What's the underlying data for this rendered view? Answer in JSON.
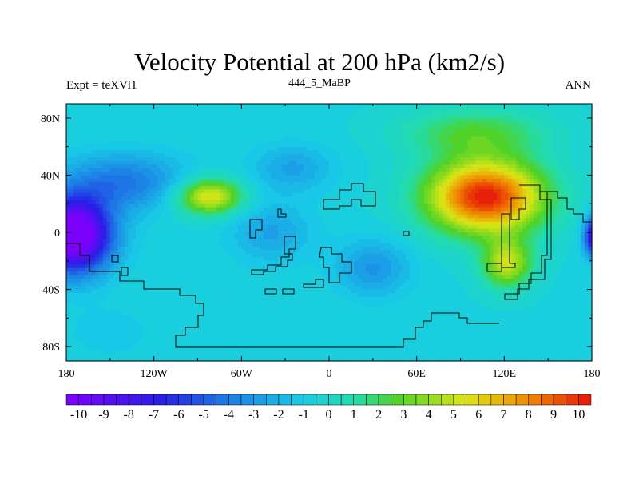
{
  "chart_data": {
    "type": "heatmap",
    "title": "Velocity Potential at 200 hPa (km2/s)",
    "left_string": "Expt = teXVl1",
    "center_string": "444_5_MaBP",
    "right_string": "ANN",
    "x_ticks": [
      {
        "value": -180,
        "label": "180"
      },
      {
        "value": -120,
        "label": "120W"
      },
      {
        "value": -60,
        "label": "60W"
      },
      {
        "value": 0,
        "label": "0"
      },
      {
        "value": 60,
        "label": "60E"
      },
      {
        "value": 120,
        "label": "120E"
      },
      {
        "value": 180,
        "label": "180"
      }
    ],
    "y_ticks": [
      {
        "value": 80,
        "label": "80N"
      },
      {
        "value": 40,
        "label": "40N"
      },
      {
        "value": 0,
        "label": "0"
      },
      {
        "value": -40,
        "label": "40S"
      },
      {
        "value": -80,
        "label": "80S"
      }
    ],
    "xlim": [
      -180,
      180
    ],
    "ylim": [
      -90,
      90
    ],
    "colorbar": {
      "min": -10.5,
      "max": 10.5,
      "step": 0.5,
      "labels": [
        "-10",
        "-9",
        "-8",
        "-7",
        "-6",
        "-5",
        "-4",
        "-3",
        "-2",
        "-1",
        "0",
        "1",
        "2",
        "3",
        "4",
        "5",
        "6",
        "7",
        "8",
        "9",
        "10"
      ]
    },
    "features": [
      {
        "lon": 107,
        "lat": 25,
        "amp": 11.0,
        "slon": 28,
        "slat": 18
      },
      {
        "lon": 122,
        "lat": -22,
        "amp": 5.5,
        "slon": 12,
        "slat": 12
      },
      {
        "lon": 100,
        "lat": 70,
        "amp": 3.0,
        "slon": 35,
        "slat": 12
      },
      {
        "lon": -82,
        "lat": 25,
        "amp": 6.5,
        "slon": 16,
        "slat": 9
      },
      {
        "lon": -175,
        "lat": -2,
        "amp": -12.0,
        "slon": 18,
        "slat": 18
      },
      {
        "lon": 184,
        "lat": -3,
        "amp": -10.0,
        "slon": 6,
        "slat": 10
      },
      {
        "lon": -140,
        "lat": 35,
        "amp": -3.5,
        "slon": 30,
        "slat": 14
      },
      {
        "lon": 30,
        "lat": -25,
        "amp": -2.5,
        "slon": 18,
        "slat": 14
      },
      {
        "lon": -40,
        "lat": 0,
        "amp": -2.0,
        "slon": 20,
        "slat": 15
      },
      {
        "lon": -25,
        "lat": 45,
        "amp": -2.0,
        "slon": 20,
        "slat": 12
      },
      {
        "lon": -150,
        "lat": -70,
        "amp": -0.8,
        "slon": 20,
        "slat": 12
      }
    ]
  }
}
